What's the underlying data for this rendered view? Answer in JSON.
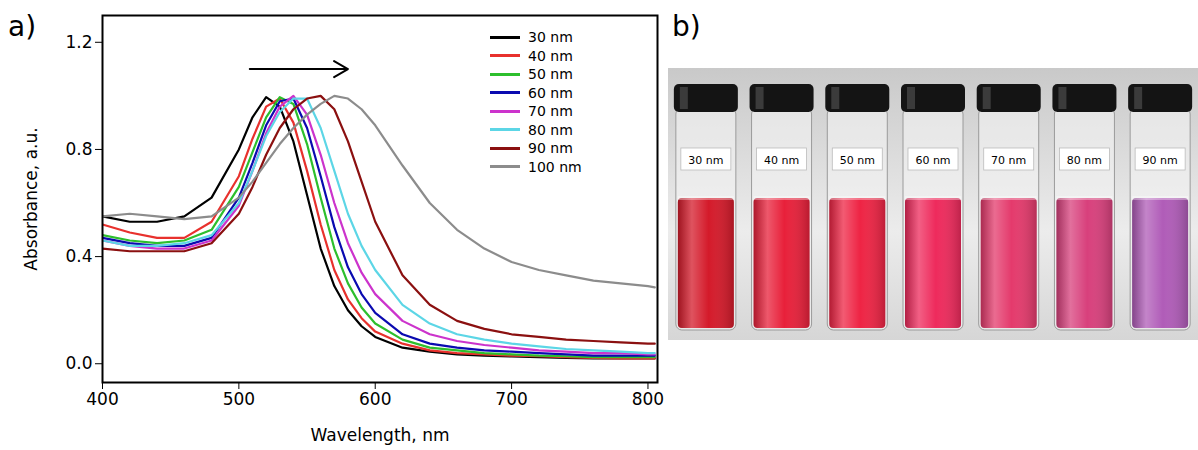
{
  "chart_data": {
    "type": "line",
    "panel_label": "a)",
    "x_label": "Wavelength, nm",
    "y_label": "Absorbance, a.u.",
    "xlim": [
      400,
      807
    ],
    "xticks": [
      400,
      500,
      600,
      700,
      800
    ],
    "ylim": [
      -0.07,
      1.3
    ],
    "yticks": [
      {
        "value": 0,
        "label": "0.0"
      },
      {
        "value": 0.4,
        "label": "0.4"
      },
      {
        "value": 0.8,
        "label": "0.8"
      },
      {
        "value": 1.2,
        "label": "1.2"
      }
    ],
    "legend": "upper right",
    "grid": false,
    "arrow": {
      "x": [
        508,
        580
      ],
      "y": 1.1
    },
    "x": [
      400,
      420,
      440,
      460,
      480,
      500,
      510,
      520,
      530,
      540,
      550,
      560,
      570,
      580,
      590,
      600,
      620,
      640,
      660,
      680,
      700,
      720,
      740,
      760,
      780,
      800,
      805
    ],
    "series": [
      {
        "name": "30 nm",
        "color": "#000000",
        "values": [
          0.55,
          0.53,
          0.53,
          0.55,
          0.62,
          0.8,
          0.92,
          0.995,
          0.96,
          0.83,
          0.63,
          0.43,
          0.29,
          0.2,
          0.14,
          0.1,
          0.06,
          0.045,
          0.035,
          0.03,
          0.027,
          0.025,
          0.022,
          0.02,
          0.02,
          0.02,
          0.02
        ]
      },
      {
        "name": "40 nm",
        "color": "#e8312d",
        "values": [
          0.52,
          0.49,
          0.47,
          0.47,
          0.53,
          0.7,
          0.84,
          0.96,
          0.99,
          0.9,
          0.72,
          0.52,
          0.35,
          0.24,
          0.17,
          0.12,
          0.075,
          0.05,
          0.04,
          0.035,
          0.03,
          0.028,
          0.025,
          0.022,
          0.02,
          0.02,
          0.02
        ]
      },
      {
        "name": "50 nm",
        "color": "#2dbf2d",
        "values": [
          0.48,
          0.46,
          0.45,
          0.46,
          0.5,
          0.66,
          0.79,
          0.92,
          0.995,
          0.97,
          0.82,
          0.62,
          0.43,
          0.3,
          0.21,
          0.15,
          0.09,
          0.06,
          0.05,
          0.04,
          0.035,
          0.03,
          0.028,
          0.025,
          0.025,
          0.025,
          0.025
        ]
      },
      {
        "name": "60 nm",
        "color": "#0a0ab0",
        "values": [
          0.47,
          0.45,
          0.44,
          0.44,
          0.47,
          0.62,
          0.75,
          0.89,
          0.98,
          0.99,
          0.88,
          0.7,
          0.51,
          0.36,
          0.26,
          0.19,
          0.11,
          0.075,
          0.06,
          0.05,
          0.045,
          0.04,
          0.035,
          0.03,
          0.03,
          0.03,
          0.03
        ]
      },
      {
        "name": "70 nm",
        "color": "#cc33cc",
        "values": [
          0.46,
          0.44,
          0.43,
          0.43,
          0.46,
          0.59,
          0.72,
          0.86,
          0.96,
          1.0,
          0.93,
          0.78,
          0.6,
          0.45,
          0.34,
          0.26,
          0.16,
          0.11,
          0.085,
          0.07,
          0.06,
          0.05,
          0.045,
          0.04,
          0.04,
          0.035,
          0.035
        ]
      },
      {
        "name": "80 nm",
        "color": "#5cd6e6",
        "values": [
          0.46,
          0.44,
          0.44,
          0.45,
          0.48,
          0.6,
          0.72,
          0.85,
          0.94,
          0.99,
          0.99,
          0.88,
          0.72,
          0.56,
          0.44,
          0.35,
          0.22,
          0.15,
          0.11,
          0.09,
          0.075,
          0.065,
          0.055,
          0.05,
          0.045,
          0.04,
          0.04
        ]
      },
      {
        "name": "90 nm",
        "color": "#8b1010",
        "values": [
          0.43,
          0.42,
          0.42,
          0.42,
          0.45,
          0.56,
          0.66,
          0.78,
          0.88,
          0.95,
          0.99,
          1.0,
          0.95,
          0.83,
          0.68,
          0.53,
          0.33,
          0.22,
          0.16,
          0.13,
          0.11,
          0.1,
          0.09,
          0.085,
          0.08,
          0.075,
          0.075
        ]
      },
      {
        "name": "100 nm",
        "color": "#8c8c8c",
        "values": [
          0.55,
          0.56,
          0.55,
          0.54,
          0.55,
          0.62,
          0.68,
          0.75,
          0.82,
          0.88,
          0.93,
          0.97,
          1.0,
          0.99,
          0.95,
          0.89,
          0.74,
          0.6,
          0.5,
          0.43,
          0.38,
          0.35,
          0.33,
          0.31,
          0.3,
          0.29,
          0.285
        ]
      }
    ]
  },
  "photo": {
    "panel_label": "b)",
    "labels": [
      "30 nm",
      "40 nm",
      "50 nm",
      "60 nm",
      "70 nm",
      "80 nm",
      "90 nm"
    ],
    "colors": [
      "#d41a2a",
      "#e8203a",
      "#ee2444",
      "#ee2a5c",
      "#e43a6c",
      "#d8407c",
      "#b05cb8"
    ]
  }
}
